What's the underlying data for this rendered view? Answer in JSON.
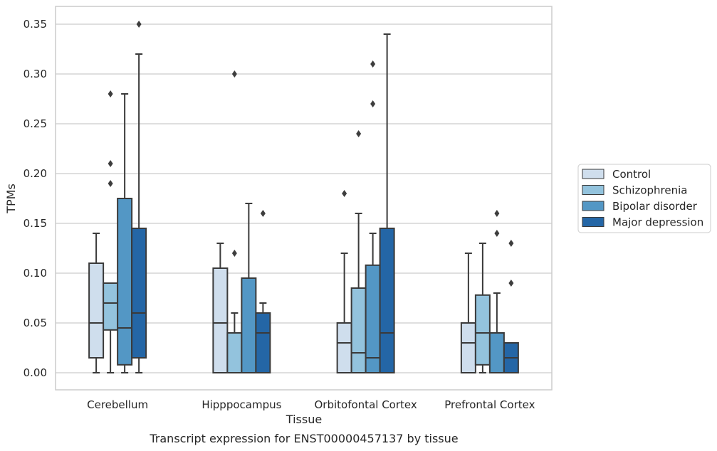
{
  "chart_data": {
    "type": "box",
    "title": "",
    "caption": "Transcript expression for ENST00000457137 by tissue",
    "xlabel": "Tissue",
    "ylabel": "TPMs",
    "ylim": [
      -0.017,
      0.368
    ],
    "yticks": [
      "0.00",
      "0.05",
      "0.10",
      "0.15",
      "0.20",
      "0.25",
      "0.30",
      "0.35"
    ],
    "grid": "horizontal",
    "legend_position": "right",
    "categories": [
      "Cerebellum",
      "Hipppocampus",
      "Orbitofontal Cortex",
      "Prefrontal Cortex"
    ],
    "series": [
      {
        "name": "Control",
        "color": "#cfdeed",
        "boxes": [
          {
            "whislo": 0.0,
            "q1": 0.015,
            "med": 0.05,
            "q3": 0.11,
            "whishi": 0.14,
            "fliers": []
          },
          {
            "whislo": 0.0,
            "q1": 0.0,
            "med": 0.05,
            "q3": 0.105,
            "whishi": 0.13,
            "fliers": []
          },
          {
            "whislo": 0.0,
            "q1": 0.0,
            "med": 0.03,
            "q3": 0.05,
            "whishi": 0.12,
            "fliers": [
              0.18
            ]
          },
          {
            "whislo": 0.0,
            "q1": 0.0,
            "med": 0.03,
            "q3": 0.05,
            "whishi": 0.12,
            "fliers": []
          }
        ]
      },
      {
        "name": "Schizophrenia",
        "color": "#93c3dd",
        "boxes": [
          {
            "whislo": 0.0,
            "q1": 0.043,
            "med": 0.07,
            "q3": 0.09,
            "whishi": 0.09,
            "fliers": [
              0.19,
              0.21,
              0.28
            ]
          },
          {
            "whislo": 0.0,
            "q1": 0.0,
            "med": 0.04,
            "q3": 0.04,
            "whishi": 0.06,
            "fliers": [
              0.12,
              0.3
            ]
          },
          {
            "whislo": 0.0,
            "q1": 0.0,
            "med": 0.02,
            "q3": 0.085,
            "whishi": 0.16,
            "fliers": [
              0.24
            ]
          },
          {
            "whislo": 0.0,
            "q1": 0.008,
            "med": 0.04,
            "q3": 0.078,
            "whishi": 0.13,
            "fliers": []
          }
        ]
      },
      {
        "name": "Bipolar disorder",
        "color": "#5397c5",
        "boxes": [
          {
            "whislo": 0.0,
            "q1": 0.008,
            "med": 0.045,
            "q3": 0.175,
            "whishi": 0.28,
            "fliers": []
          },
          {
            "whislo": 0.0,
            "q1": 0.0,
            "med": 0.0,
            "q3": 0.095,
            "whishi": 0.17,
            "fliers": []
          },
          {
            "whislo": 0.0,
            "q1": 0.0,
            "med": 0.015,
            "q3": 0.108,
            "whishi": 0.14,
            "fliers": [
              0.27,
              0.31
            ]
          },
          {
            "whislo": 0.0,
            "q1": 0.0,
            "med": 0.04,
            "q3": 0.04,
            "whishi": 0.08,
            "fliers": [
              0.14,
              0.16
            ]
          }
        ]
      },
      {
        "name": "Major depression",
        "color": "#2466a6",
        "boxes": [
          {
            "whislo": 0.0,
            "q1": 0.015,
            "med": 0.06,
            "q3": 0.145,
            "whishi": 0.32,
            "fliers": [
              0.35
            ]
          },
          {
            "whislo": 0.0,
            "q1": 0.0,
            "med": 0.04,
            "q3": 0.06,
            "whishi": 0.07,
            "fliers": [
              0.16
            ]
          },
          {
            "whislo": 0.0,
            "q1": 0.0,
            "med": 0.04,
            "q3": 0.145,
            "whishi": 0.34,
            "fliers": []
          },
          {
            "whislo": 0.0,
            "q1": 0.0,
            "med": 0.015,
            "q3": 0.03,
            "whishi": 0.03,
            "fliers": [
              0.09,
              0.13
            ]
          }
        ]
      }
    ]
  }
}
